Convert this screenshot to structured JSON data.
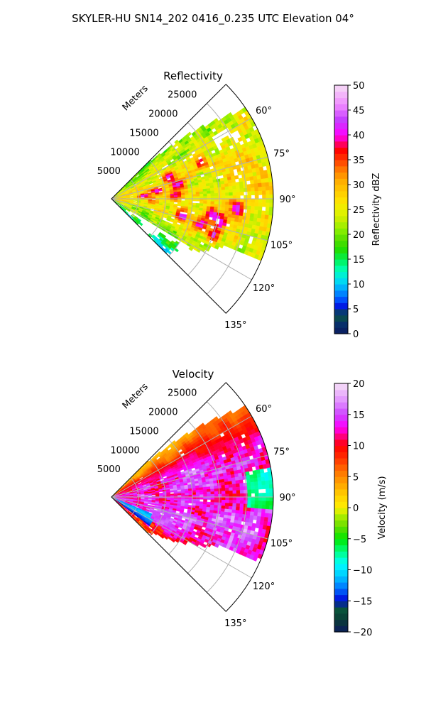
{
  "figure": {
    "suptitle": "SKYLER-HU  SN14_202  0416_0.235 UTC Elevation 04°"
  },
  "chart_data": [
    {
      "type": "heatmap",
      "projection": "polar-sector",
      "title": "Reflectivity",
      "radial_label": "Meters",
      "radial_ticks": [
        5000,
        10000,
        15000,
        20000,
        25000
      ],
      "radial_tick_labels": [
        "5000",
        "10000",
        "15000",
        "20000",
        "25000"
      ],
      "theta_ticks": [
        60,
        75,
        90,
        105,
        120,
        135
      ],
      "theta_tick_labels": [
        "60°",
        "75°",
        "90°",
        "105°",
        "120°",
        "135°"
      ],
      "theta_range_deg": [
        45,
        135
      ],
      "range_max_m": 30000,
      "grid": true,
      "field": "reflectivity",
      "colorbar": {
        "label": "Reflectivity dBZ",
        "min": 0,
        "max": 50,
        "ticks": [
          0,
          5,
          10,
          15,
          20,
          25,
          30,
          35,
          40,
          45,
          50
        ],
        "tick_labels": [
          "0",
          "5",
          "10",
          "15",
          "20",
          "25",
          "30",
          "35",
          "40",
          "45",
          "50"
        ]
      }
    },
    {
      "type": "heatmap",
      "projection": "polar-sector",
      "title": "Velocity",
      "radial_label": "Meters",
      "radial_ticks": [
        5000,
        10000,
        15000,
        20000,
        25000
      ],
      "radial_tick_labels": [
        "5000",
        "10000",
        "15000",
        "20000",
        "25000"
      ],
      "theta_ticks": [
        60,
        75,
        90,
        105,
        120,
        135
      ],
      "theta_tick_labels": [
        "60°",
        "75°",
        "90°",
        "105°",
        "120°",
        "135°"
      ],
      "theta_range_deg": [
        45,
        135
      ],
      "range_max_m": 30000,
      "grid": true,
      "field": "velocity",
      "colorbar": {
        "label": "Velocity (m/s)",
        "min": -20,
        "max": 20,
        "ticks": [
          -20,
          -15,
          -10,
          -5,
          0,
          5,
          10,
          15,
          20
        ],
        "tick_labels": [
          "−20",
          "−15",
          "−10",
          "−5",
          "0",
          "5",
          "10",
          "15",
          "20"
        ]
      }
    }
  ]
}
